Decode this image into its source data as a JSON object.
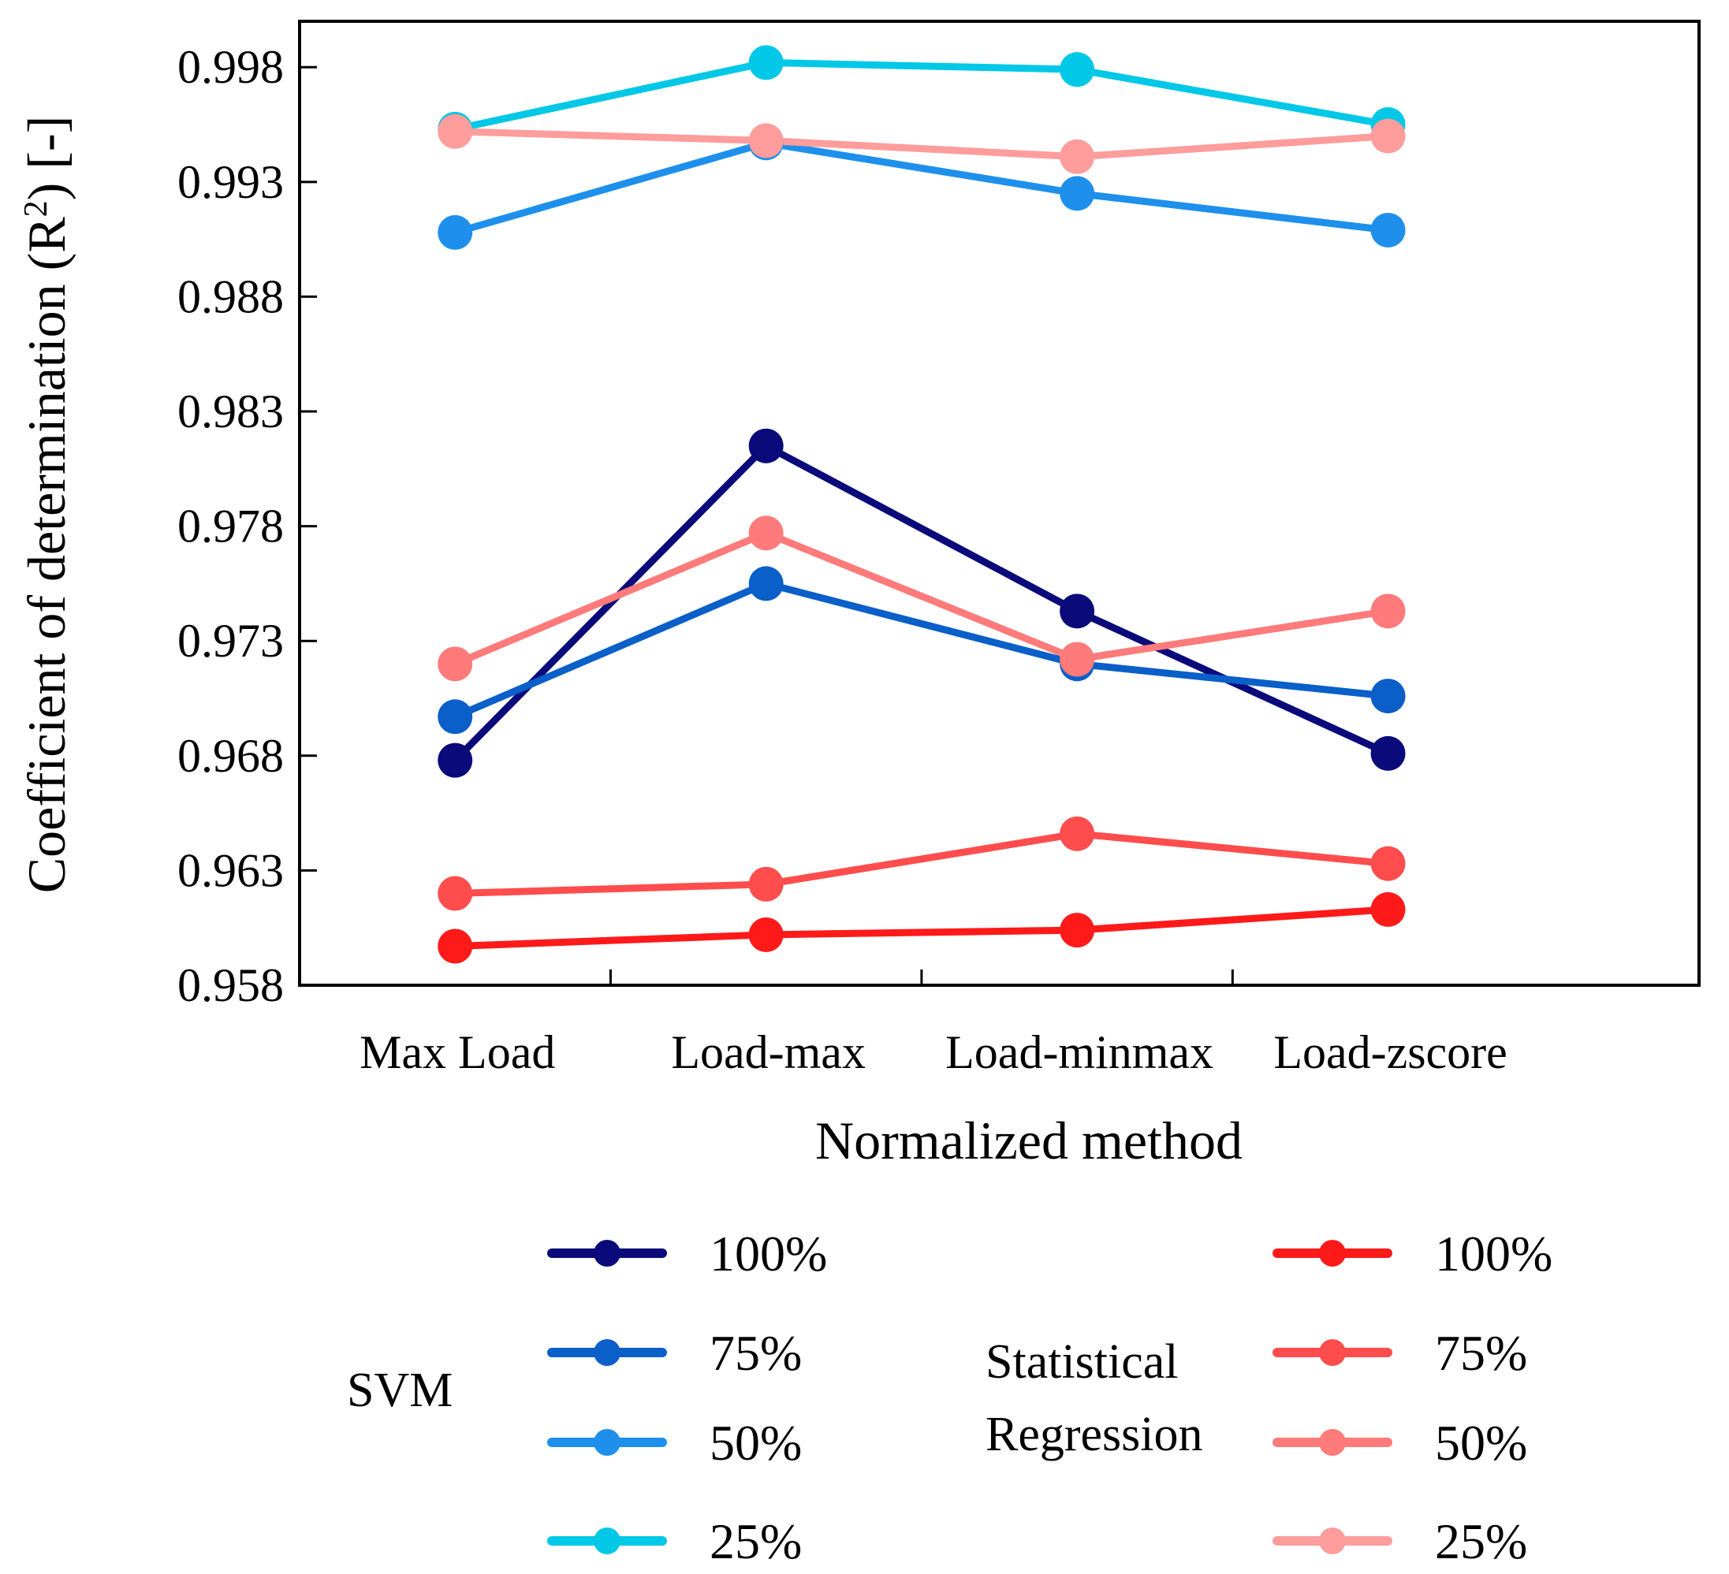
{
  "chart_data": {
    "type": "line",
    "title": "",
    "xlabel": "Normalized method",
    "ylabel": "Coefficient of determination (R²) [-]",
    "ylabel_parts": {
      "pre": "Coefficient of determination (R",
      "sup": "2",
      "post": ") [-]"
    },
    "categories": [
      "Max Load",
      "Load-max",
      "Load-minmax",
      "Load-zscore"
    ],
    "ylim": [
      0.958,
      1.0
    ],
    "yticks": [
      0.958,
      0.963,
      0.968,
      0.973,
      0.978,
      0.983,
      0.988,
      0.993,
      0.998
    ],
    "ytick_labels": [
      "0.958",
      "0.963",
      "0.968",
      "0.973",
      "0.978",
      "0.983",
      "0.988",
      "0.993",
      "0.998"
    ],
    "grid": false,
    "legend_position": "bottom",
    "series": [
      {
        "name": "100%",
        "group": "SVM",
        "color": "#0a0a7a",
        "values": [
          0.9678,
          0.9815,
          0.9743,
          0.9681
        ]
      },
      {
        "name": "75%",
        "group": "SVM",
        "color": "#0a5fc8",
        "values": [
          0.9697,
          0.9755,
          0.972,
          0.9706
        ]
      },
      {
        "name": "50%",
        "group": "SVM",
        "color": "#1e90ec",
        "values": [
          0.9908,
          0.9947,
          0.9925,
          0.9909
        ]
      },
      {
        "name": "25%",
        "group": "SVM",
        "color": "#00c8e6",
        "values": [
          0.9953,
          0.9982,
          0.9979,
          0.9955
        ]
      },
      {
        "name": "100%",
        "group": "Statistical Regression",
        "color": "#ff1a1a",
        "values": [
          0.9597,
          0.9602,
          0.9604,
          0.9613
        ]
      },
      {
        "name": "75%",
        "group": "Statistical Regression",
        "color": "#ff4d4d",
        "values": [
          0.962,
          0.9624,
          0.9646,
          0.9633
        ]
      },
      {
        "name": "50%",
        "group": "Statistical Regression",
        "color": "#ff7a7a",
        "values": [
          0.972,
          0.9777,
          0.9722,
          0.9743
        ]
      },
      {
        "name": "25%",
        "group": "Statistical Regression",
        "color": "#ff9c9c",
        "values": [
          0.9952,
          0.9948,
          0.9941,
          0.995
        ]
      }
    ],
    "legend": {
      "groups": [
        {
          "title": "SVM",
          "title_lines": [
            "SVM"
          ],
          "entries": [
            "100%",
            "75%",
            "50%",
            "25%"
          ]
        },
        {
          "title": "Statistical Regression",
          "title_lines": [
            "Statistical",
            "Regression"
          ],
          "entries": [
            "100%",
            "75%",
            "50%",
            "25%"
          ]
        }
      ]
    }
  }
}
